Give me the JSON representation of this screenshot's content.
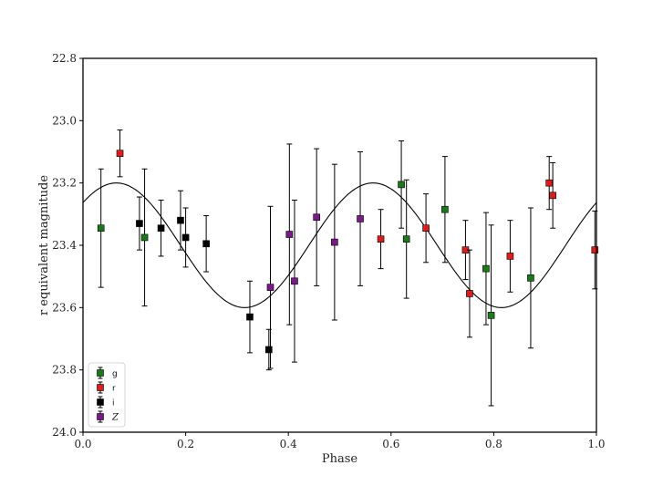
{
  "chart_data": {
    "type": "scatter",
    "xlabel": "Phase",
    "ylabel": "r equivalent magnitude",
    "xlim": [
      0.0,
      1.0
    ],
    "ylim": [
      24.0,
      22.8
    ],
    "y_inverted": true,
    "x_ticks": [
      "0.0",
      "0.2",
      "0.4",
      "0.6",
      "0.8",
      "1.0"
    ],
    "x_tick_values": [
      0.0,
      0.2,
      0.4,
      0.6,
      0.8,
      1.0
    ],
    "y_ticks": [
      "22.8",
      "23.0",
      "23.2",
      "23.4",
      "23.6",
      "23.8",
      "24.0"
    ],
    "y_tick_values": [
      22.8,
      23.0,
      23.2,
      23.4,
      23.6,
      23.8,
      24.0
    ],
    "legend_position": "lower-left",
    "model_curve": {
      "mean": 23.4,
      "amplitude": 0.2,
      "peaks_per_cycle": 2,
      "phase_of_min_mag": 0.065,
      "color": "#000000"
    },
    "series": [
      {
        "name": "g",
        "color": "#1a7a1a",
        "points": [
          {
            "x": 0.035,
            "y": 23.345,
            "err": 0.19
          },
          {
            "x": 0.12,
            "y": 23.375,
            "err": 0.22
          },
          {
            "x": 0.62,
            "y": 23.205,
            "err": 0.14
          },
          {
            "x": 0.63,
            "y": 23.38,
            "err": 0.19
          },
          {
            "x": 0.705,
            "y": 23.285,
            "err": 0.17
          },
          {
            "x": 0.785,
            "y": 23.475,
            "err": 0.18
          },
          {
            "x": 0.795,
            "y": 23.625,
            "err": 0.29
          },
          {
            "x": 0.872,
            "y": 23.505,
            "err": 0.225
          }
        ]
      },
      {
        "name": "r",
        "color": "#dd1c1c",
        "points": [
          {
            "x": 0.072,
            "y": 23.105,
            "err": 0.075
          },
          {
            "x": 0.58,
            "y": 23.38,
            "err": 0.095
          },
          {
            "x": 0.668,
            "y": 23.345,
            "err": 0.11
          },
          {
            "x": 0.745,
            "y": 23.415,
            "err": 0.095
          },
          {
            "x": 0.753,
            "y": 23.555,
            "err": 0.14
          },
          {
            "x": 0.832,
            "y": 23.435,
            "err": 0.115
          },
          {
            "x": 0.908,
            "y": 23.2,
            "err": 0.085
          },
          {
            "x": 0.915,
            "y": 23.24,
            "err": 0.105
          },
          {
            "x": 0.997,
            "y": 23.415,
            "err": 0.125
          }
        ]
      },
      {
        "name": "i",
        "color": "#000000",
        "points": [
          {
            "x": 0.11,
            "y": 23.33,
            "err": 0.085
          },
          {
            "x": 0.152,
            "y": 23.345,
            "err": 0.09
          },
          {
            "x": 0.19,
            "y": 23.32,
            "err": 0.095
          },
          {
            "x": 0.2,
            "y": 23.375,
            "err": 0.095
          },
          {
            "x": 0.24,
            "y": 23.395,
            "err": 0.09
          },
          {
            "x": 0.325,
            "y": 23.63,
            "err": 0.115
          },
          {
            "x": 0.362,
            "y": 23.735,
            "err": 0.065
          }
        ]
      },
      {
        "name": "Z",
        "color": "#7a1a8a",
        "points": [
          {
            "x": 0.365,
            "y": 23.535,
            "err": 0.26
          },
          {
            "x": 0.402,
            "y": 23.365,
            "err": 0.29
          },
          {
            "x": 0.412,
            "y": 23.515,
            "err": 0.26
          },
          {
            "x": 0.455,
            "y": 23.31,
            "err": 0.22
          },
          {
            "x": 0.49,
            "y": 23.39,
            "err": 0.25
          },
          {
            "x": 0.54,
            "y": 23.315,
            "err": 0.215
          }
        ]
      }
    ]
  }
}
